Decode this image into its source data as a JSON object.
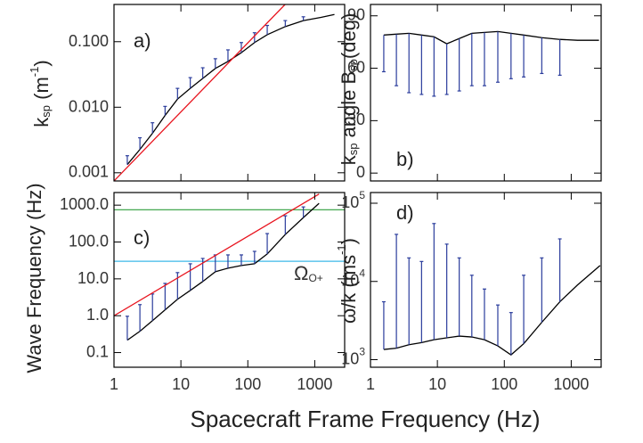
{
  "figure": {
    "xlabel": "Spacecraft Frame Frequency (Hz)"
  },
  "chart_data": [
    {
      "type": "line",
      "panel_label": "a)",
      "ylabel_parts": [
        "k",
        "sp",
        " (m",
        "-1",
        ")"
      ],
      "ylabel_styles": [
        "normal",
        "sub",
        "normal",
        "sup",
        "normal"
      ],
      "xlog": true,
      "ylog": true,
      "xlim": [
        1,
        2800
      ],
      "ylim": [
        0.00075,
        0.37
      ],
      "xticks": [
        1,
        10,
        100,
        1000
      ],
      "show_xtick_labels": false,
      "yticks": [
        0.001,
        {
          "value": 0.01,
          "label": "0.010"
        },
        {
          "value": 0.1,
          "label": "0.100"
        }
      ],
      "x": [
        1.58,
        2.44,
        3.76,
        5.8,
        8.9,
        13.8,
        21.2,
        32.7,
        50.5,
        80,
        126,
        195,
        363,
        676,
        1240,
        1970
      ],
      "series": [
        {
          "color": "#000000",
          "error_color": "#2a3c9c",
          "error_side": "up",
          "values": [
            0.00133,
            0.00227,
            0.004,
            0.0075,
            0.0133,
            0.0194,
            0.0275,
            0.039,
            0.05,
            0.068,
            0.097,
            0.128,
            0.17,
            0.21,
            0.235,
            0.26
          ],
          "errors": [
            0.00049,
            0.00115,
            0.0018,
            0.0028,
            0.0061,
            0.0089,
            0.0125,
            0.016,
            0.025,
            0.029,
            0.04,
            0.049,
            0.04,
            0.03,
            null,
            null
          ]
        },
        {
          "color": "#e8141e",
          "x": [
            1,
            360
          ],
          "values": [
            0.00075,
            0.37
          ]
        }
      ]
    },
    {
      "type": "line",
      "panel_label": "b)",
      "ylabel_parts": [
        "k",
        "sp",
        " angle B",
        "sp",
        "(deg)"
      ],
      "ylabel_styles": [
        "normal",
        "sub",
        "normal",
        "sub",
        "normal"
      ],
      "xlog": true,
      "ylog": false,
      "xlim": [
        1,
        2800
      ],
      "ylim": [
        -4.5,
        96.5
      ],
      "xticks": [
        1,
        10,
        100,
        1000
      ],
      "show_xtick_labels": false,
      "yticks": [
        0,
        30,
        60,
        90
      ],
      "x": [
        1.58,
        2.44,
        3.76,
        5.8,
        8.9,
        13.8,
        21.2,
        32.7,
        50.5,
        80,
        126,
        195,
        363,
        676,
        1240,
        2600
      ],
      "series": [
        {
          "color": "#000000",
          "error_color": "#2a3c9c",
          "error_side": "down",
          "values": [
            79,
            79.5,
            80,
            79,
            78,
            74,
            77,
            80,
            80.5,
            81,
            80,
            79,
            77.5,
            76.5,
            76,
            76
          ],
          "errors": [
            21,
            29.5,
            34,
            34,
            34,
            29,
            30,
            30,
            30.5,
            29,
            26,
            24,
            20.5,
            20.5,
            null,
            null
          ]
        }
      ]
    },
    {
      "type": "line",
      "panel_label": "c)",
      "ylabel_parts": [
        "Wave Frequency (Hz)"
      ],
      "ylabel_styles": [
        "normal"
      ],
      "xlog": true,
      "ylog": true,
      "xlim": [
        1,
        2800
      ],
      "ylim": [
        0.04,
        2200
      ],
      "xticks": [
        1,
        10,
        100,
        1000
      ],
      "show_xtick_labels": true,
      "yticks": [
        0.1,
        {
          "value": 1,
          "label": "1.0"
        },
        {
          "value": 10,
          "label": "10.0"
        },
        {
          "value": 100,
          "label": "100.0"
        },
        {
          "value": 1000,
          "label": "1000.0"
        }
      ],
      "x": [
        1.58,
        2.44,
        3.76,
        5.8,
        8.9,
        13.8,
        21.2,
        32.7,
        50.5,
        80,
        126,
        195,
        363,
        676,
        1160
      ],
      "hlines": [
        {
          "value": 750,
          "color": "#2e9e3a"
        },
        {
          "value": 30,
          "color": "#3db8e8"
        }
      ],
      "annotation": "Ω",
      "annotation_sub": "O+",
      "series": [
        {
          "color": "#000000",
          "error_color": "#2a3c9c",
          "error_side": "up",
          "values": [
            0.217,
            0.379,
            0.736,
            1.44,
            2.79,
            4.86,
            8.47,
            15.6,
            19.5,
            23.0,
            25.7,
            47.3,
            160,
            460,
            1120
          ],
          "errors": [
            0.75,
            1.62,
            3.15,
            6.1,
            12.0,
            20.8,
            27.3,
            29.1,
            25.2,
            21.7,
            30.1,
            122,
            354,
            435,
            null
          ]
        },
        {
          "color": "#e8141e",
          "x": [
            1,
            1160
          ],
          "values": [
            1.0,
            2000
          ]
        }
      ]
    },
    {
      "type": "line",
      "panel_label": "d)",
      "ylabel_parts": [
        "ω/k (ms",
        "-1",
        ")"
      ],
      "ylabel_styles": [
        "normal",
        "sup",
        "normal"
      ],
      "xlog": true,
      "ylog": true,
      "xlim": [
        1,
        2800
      ],
      "ylim": [
        800,
        137000
      ],
      "xticks": [
        1,
        10,
        100,
        1000
      ],
      "show_xtick_labels": true,
      "yticks": [
        {
          "value": 1000,
          "label": "10",
          "label_sup": "3"
        },
        {
          "value": 10000,
          "label": "10",
          "label_sup": "4"
        },
        {
          "value": 100000,
          "label": "10",
          "label_sup": "5"
        }
      ],
      "x": [
        1.58,
        2.44,
        3.76,
        5.8,
        8.9,
        13.8,
        21.2,
        32.7,
        50.5,
        80,
        126,
        195,
        363,
        676,
        1240,
        2700
      ],
      "series": [
        {
          "color": "#000000",
          "error_color": "#2a3c9c",
          "error_side": "up",
          "values": [
            1350,
            1400,
            1550,
            1650,
            1800,
            1900,
            2000,
            1950,
            1800,
            1500,
            1150,
            1600,
            3000,
            5500,
            9000,
            16000
          ],
          "errors": [
            4150,
            38600,
            18450,
            16350,
            53200,
            28100,
            18000,
            10050,
            6200,
            3500,
            2850,
            10400,
            17000,
            29500,
            null,
            null
          ]
        }
      ]
    }
  ]
}
